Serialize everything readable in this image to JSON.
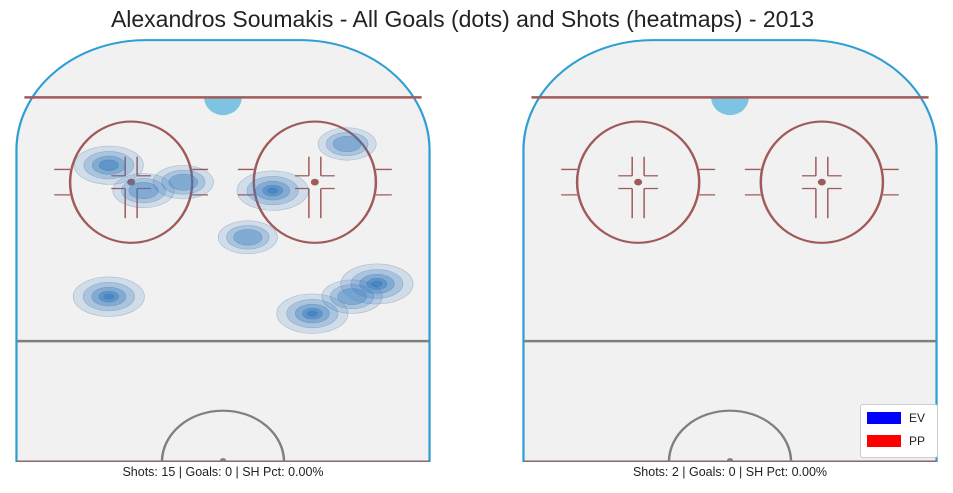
{
  "title": "Alexandros Soumakis - All Goals (dots) and Shots (heatmaps) - 2013",
  "colors": {
    "ice": "#f1f1f1",
    "boards": "#2e9fd4",
    "red_line": "#a05a5a",
    "blue_line": "#7f7f7f",
    "goalie_crease": "#7ec4e2",
    "ev": "#0000ff",
    "pp": "#ff0000",
    "heatmap_base": "#3d7fc0"
  },
  "legend": {
    "position": "lower-right",
    "items": [
      {
        "label": "EV",
        "color": "#0000ff"
      },
      {
        "label": "PP",
        "color": "#ff0000"
      }
    ]
  },
  "chart_data": [
    {
      "type": "heatmap",
      "panel": "left",
      "caption": "Shots: 15 | Goals: 0 | SH Pct: 0.00%",
      "stats": {
        "shots": 15,
        "goals": 0,
        "sh_pct": 0.0
      },
      "goals": [],
      "shot_density_clusters": [
        {
          "x": -23,
          "y": 70,
          "intensity": 0.8
        },
        {
          "x": -16,
          "y": 64,
          "intensity": 0.45
        },
        {
          "x": -8,
          "y": 66,
          "intensity": 0.4
        },
        {
          "x": -23,
          "y": 39,
          "intensity": 0.9
        },
        {
          "x": 10,
          "y": 64,
          "intensity": 0.9
        },
        {
          "x": 5,
          "y": 53,
          "intensity": 0.35
        },
        {
          "x": 25,
          "y": 75,
          "intensity": 0.3
        },
        {
          "x": 31,
          "y": 42,
          "intensity": 0.95
        },
        {
          "x": 18,
          "y": 35,
          "intensity": 0.9
        },
        {
          "x": 26,
          "y": 39,
          "intensity": 0.4
        }
      ]
    },
    {
      "type": "heatmap",
      "panel": "right",
      "caption": "Shots: 2 | Goals: 0 | SH Pct: 0.00%",
      "stats": {
        "shots": 2,
        "goals": 0,
        "sh_pct": 0.0
      },
      "goals": [],
      "shot_density_clusters": []
    }
  ]
}
